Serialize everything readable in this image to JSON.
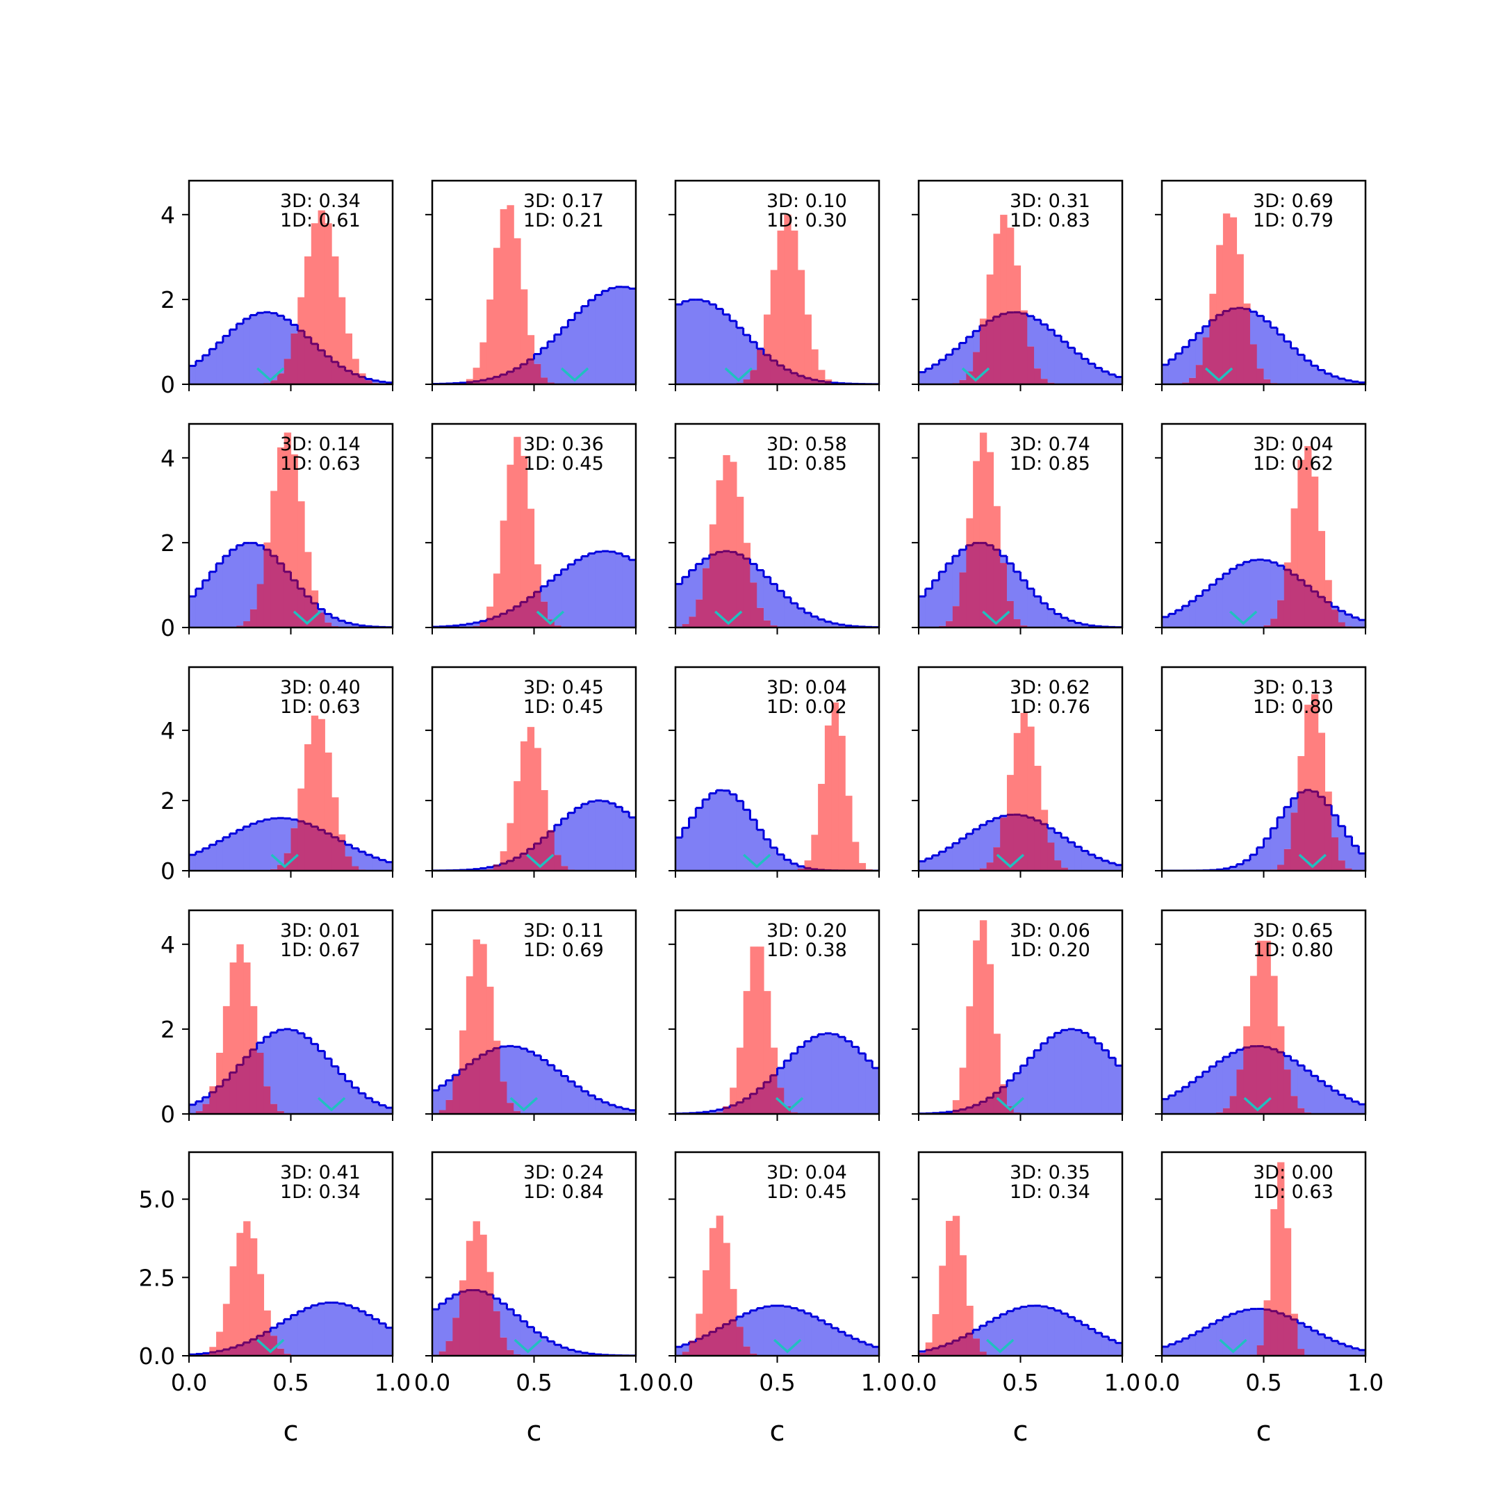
{
  "chart_data": {
    "type": "histogram-grid",
    "rows": 5,
    "cols": 5,
    "xlabel": "c",
    "xlim": [
      0.0,
      1.0
    ],
    "xtick_labels": [
      "0.0",
      "0.5",
      "1.0"
    ],
    "row_ylims": [
      [
        0,
        4.8
      ],
      [
        0,
        4.8
      ],
      [
        0,
        5.8
      ],
      [
        0,
        4.8
      ],
      [
        0,
        6.5
      ]
    ],
    "row_ytick_labels": [
      [
        "0",
        "2",
        "4"
      ],
      [
        "0",
        "2",
        "4"
      ],
      [
        "0",
        "2",
        "4"
      ],
      [
        "0",
        "2",
        "4"
      ],
      [
        "0.0",
        "2.5",
        "5.0"
      ]
    ],
    "row_ytick_values": [
      [
        0,
        2,
        4
      ],
      [
        0,
        2,
        4
      ],
      [
        0,
        2,
        4
      ],
      [
        0,
        2,
        4
      ],
      [
        0,
        2.5,
        5
      ]
    ],
    "colors": {
      "blue_fill": "#7f7ff5",
      "blue_edge": "#0000dd",
      "red_fill": "#ff7f7f",
      "overlap": "#c0397a",
      "overlap_edge": "#6a006a",
      "marker": "#20c0c0"
    },
    "series_names": [
      "blue histogram",
      "red histogram",
      "cyan marker"
    ],
    "panels": [
      {
        "ann3d": "3D: 0.34",
        "ann1d": "1D: 0.61",
        "blue": {
          "mu": 0.38,
          "sd": 0.22,
          "peak": 1.7
        },
        "red": {
          "mu": 0.65,
          "sd": 0.085,
          "peak": 4.1
        },
        "marker": 0.4
      },
      {
        "ann3d": "3D: 0.17",
        "ann1d": "1D: 0.21",
        "blue": {
          "mu": 0.93,
          "sd": 0.27,
          "peak": 2.3
        },
        "red": {
          "mu": 0.37,
          "sd": 0.07,
          "peak": 4.3
        },
        "marker": 0.7
      },
      {
        "ann3d": "3D: 0.10",
        "ann1d": "1D: 0.30",
        "blue": {
          "mu": 0.1,
          "sd": 0.24,
          "peak": 2.0
        },
        "red": {
          "mu": 0.55,
          "sd": 0.075,
          "peak": 4.0
        },
        "marker": 0.31
      },
      {
        "ann3d": "3D: 0.31",
        "ann1d": "1D: 0.83",
        "blue": {
          "mu": 0.47,
          "sd": 0.24,
          "peak": 1.7
        },
        "red": {
          "mu": 0.42,
          "sd": 0.075,
          "peak": 4.0
        },
        "marker": 0.28
      },
      {
        "ann3d": "3D: 0.69",
        "ann1d": "1D: 0.79",
        "blue": {
          "mu": 0.38,
          "sd": 0.22,
          "peak": 1.8
        },
        "red": {
          "mu": 0.33,
          "sd": 0.07,
          "peak": 4.1
        },
        "marker": 0.28
      },
      {
        "ann3d": "3D: 0.14",
        "ann1d": "1D: 0.63",
        "blue": {
          "mu": 0.3,
          "sd": 0.2,
          "peak": 2.0
        },
        "red": {
          "mu": 0.48,
          "sd": 0.075,
          "peak": 4.6
        },
        "marker": 0.58
      },
      {
        "ann3d": "3D: 0.36",
        "ann1d": "1D: 0.45",
        "blue": {
          "mu": 0.85,
          "sd": 0.27,
          "peak": 1.8
        },
        "red": {
          "mu": 0.42,
          "sd": 0.065,
          "peak": 4.5
        },
        "marker": 0.58
      },
      {
        "ann3d": "3D: 0.58",
        "ann1d": "1D: 0.85",
        "blue": {
          "mu": 0.25,
          "sd": 0.22,
          "peak": 1.8
        },
        "red": {
          "mu": 0.26,
          "sd": 0.075,
          "peak": 4.1
        },
        "marker": 0.26
      },
      {
        "ann3d": "3D: 0.74",
        "ann1d": "1D: 0.85",
        "blue": {
          "mu": 0.3,
          "sd": 0.2,
          "peak": 2.0
        },
        "red": {
          "mu": 0.32,
          "sd": 0.065,
          "peak": 4.6
        },
        "marker": 0.38
      },
      {
        "ann3d": "3D: 0.04",
        "ann1d": "1D: 0.62",
        "blue": {
          "mu": 0.48,
          "sd": 0.24,
          "peak": 1.6
        },
        "red": {
          "mu": 0.71,
          "sd": 0.065,
          "peak": 4.3
        },
        "marker": 0.4
      },
      {
        "ann3d": "3D: 0.40",
        "ann1d": "1D: 0.63",
        "blue": {
          "mu": 0.45,
          "sd": 0.28,
          "peak": 1.5
        },
        "red": {
          "mu": 0.63,
          "sd": 0.07,
          "peak": 4.5
        },
        "marker": 0.47
      },
      {
        "ann3d": "3D: 0.45",
        "ann1d": "1D: 0.45",
        "blue": {
          "mu": 0.82,
          "sd": 0.22,
          "peak": 2.0
        },
        "red": {
          "mu": 0.48,
          "sd": 0.065,
          "peak": 4.1
        },
        "marker": 0.53
      },
      {
        "ann3d": "3D: 0.04",
        "ann1d": "1D: 0.02",
        "blue": {
          "mu": 0.23,
          "sd": 0.16,
          "peak": 2.3
        },
        "red": {
          "mu": 0.78,
          "sd": 0.055,
          "peak": 4.8
        },
        "marker": 0.4
      },
      {
        "ann3d": "3D: 0.62",
        "ann1d": "1D: 0.76",
        "blue": {
          "mu": 0.47,
          "sd": 0.24,
          "peak": 1.6
        },
        "red": {
          "mu": 0.52,
          "sd": 0.07,
          "peak": 4.5
        },
        "marker": 0.45
      },
      {
        "ann3d": "3D: 0.13",
        "ann1d": "1D: 0.80",
        "blue": {
          "mu": 0.72,
          "sd": 0.15,
          "peak": 2.3
        },
        "red": {
          "mu": 0.74,
          "sd": 0.06,
          "peak": 5.1
        },
        "marker": 0.74
      },
      {
        "ann3d": "3D: 0.01",
        "ann1d": "1D: 0.67",
        "blue": {
          "mu": 0.48,
          "sd": 0.22,
          "peak": 2.0
        },
        "red": {
          "mu": 0.25,
          "sd": 0.07,
          "peak": 4.0
        },
        "marker": 0.7
      },
      {
        "ann3d": "3D: 0.11",
        "ann1d": "1D: 0.69",
        "blue": {
          "mu": 0.38,
          "sd": 0.25,
          "peak": 1.6
        },
        "red": {
          "mu": 0.23,
          "sd": 0.065,
          "peak": 4.2
        },
        "marker": 0.45
      },
      {
        "ann3d": "3D: 0.20",
        "ann1d": "1D: 0.38",
        "blue": {
          "mu": 0.75,
          "sd": 0.22,
          "peak": 1.9
        },
        "red": {
          "mu": 0.4,
          "sd": 0.06,
          "peak": 4.1
        },
        "marker": 0.56
      },
      {
        "ann3d": "3D: 0.06",
        "ann1d": "1D: 0.20",
        "blue": {
          "mu": 0.75,
          "sd": 0.22,
          "peak": 2.0
        },
        "red": {
          "mu": 0.31,
          "sd": 0.055,
          "peak": 4.6
        },
        "marker": 0.45
      },
      {
        "ann3d": "3D: 0.65",
        "ann1d": "1D: 0.80",
        "blue": {
          "mu": 0.47,
          "sd": 0.26,
          "peak": 1.6
        },
        "red": {
          "mu": 0.5,
          "sd": 0.07,
          "peak": 4.2
        },
        "marker": 0.47
      },
      {
        "ann3d": "3D: 0.41",
        "ann1d": "1D: 0.34",
        "blue": {
          "mu": 0.7,
          "sd": 0.25,
          "peak": 1.7
        },
        "red": {
          "mu": 0.28,
          "sd": 0.07,
          "peak": 4.3
        },
        "marker": 0.4
      },
      {
        "ann3d": "3D: 0.24",
        "ann1d": "1D: 0.84",
        "blue": {
          "mu": 0.2,
          "sd": 0.22,
          "peak": 2.1
        },
        "red": {
          "mu": 0.22,
          "sd": 0.065,
          "peak": 4.3
        },
        "marker": 0.47
      },
      {
        "ann3d": "3D: 0.04",
        "ann1d": "1D: 0.45",
        "blue": {
          "mu": 0.5,
          "sd": 0.26,
          "peak": 1.6
        },
        "red": {
          "mu": 0.21,
          "sd": 0.06,
          "peak": 4.5
        },
        "marker": 0.55
      },
      {
        "ann3d": "3D: 0.35",
        "ann1d": "1D: 0.34",
        "blue": {
          "mu": 0.57,
          "sd": 0.25,
          "peak": 1.6
        },
        "red": {
          "mu": 0.17,
          "sd": 0.055,
          "peak": 4.6
        },
        "marker": 0.4
      },
      {
        "ann3d": "3D: 0.00",
        "ann1d": "1D: 0.63",
        "blue": {
          "mu": 0.47,
          "sd": 0.25,
          "peak": 1.5
        },
        "red": {
          "mu": 0.58,
          "sd": 0.04,
          "peak": 6.2
        },
        "marker": 0.35
      }
    ]
  }
}
